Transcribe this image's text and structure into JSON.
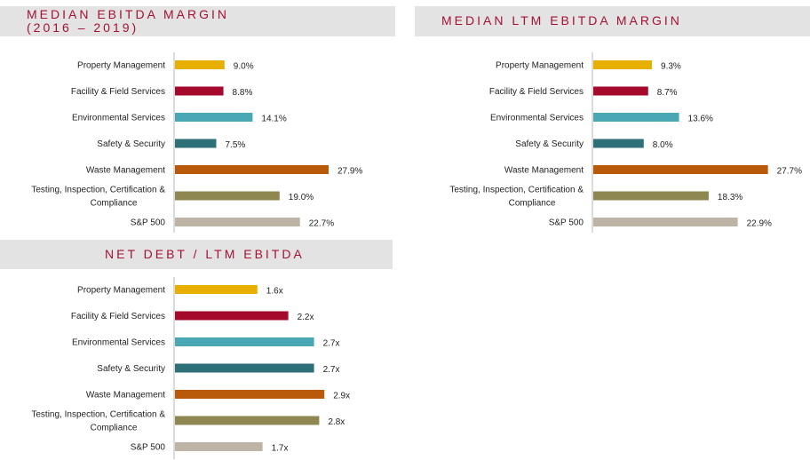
{
  "chart_data": [
    {
      "type": "bar",
      "orientation": "horizontal",
      "title": [
        "MEDIAN EBITDA MARGIN",
        "(2016 – 2019)"
      ],
      "categories": [
        "Property Management",
        "Facility & Field Services",
        "Environmental Services",
        "Safety & Security",
        "Waste Management",
        "Testing, Inspection, Certification & Compliance",
        "S&P 500"
      ],
      "values": [
        9.0,
        8.8,
        14.1,
        7.5,
        27.9,
        19.0,
        22.7
      ],
      "labels": [
        "9.0%",
        "8.8%",
        "14.1%",
        "7.5%",
        "27.9%",
        "19.0%",
        "22.7%"
      ],
      "xlim": [
        0,
        30
      ],
      "grid": false,
      "legend": "none"
    },
    {
      "type": "bar",
      "orientation": "horizontal",
      "title": [
        "MEDIAN LTM EBITDA MARGIN"
      ],
      "categories": [
        "Property Management",
        "Facility & Field Services",
        "Environmental Services",
        "Safety & Security",
        "Waste Management",
        "Testing, Inspection, Certification & Compliance",
        "S&P 500"
      ],
      "values": [
        9.3,
        8.7,
        13.6,
        8.0,
        27.7,
        18.3,
        22.9
      ],
      "labels": [
        "9.3%",
        "8.7%",
        "13.6%",
        "8.0%",
        "27.7%",
        "18.3%",
        "22.9%"
      ],
      "xlim": [
        0,
        30
      ],
      "grid": false,
      "legend": "none"
    },
    {
      "type": "bar",
      "orientation": "horizontal",
      "title": [
        "NET DEBT / LTM EBITDA"
      ],
      "categories": [
        "Property Management",
        "Facility & Field Services",
        "Environmental Services",
        "Safety & Security",
        "Waste Management",
        "Testing, Inspection, Certification & Compliance",
        "S&P 500"
      ],
      "values": [
        1.6,
        2.2,
        2.7,
        2.7,
        2.9,
        2.8,
        1.7
      ],
      "labels": [
        "1.6x",
        "2.2x",
        "2.7x",
        "2.7x",
        "2.9x",
        "2.8x",
        "1.7x"
      ],
      "xlim": [
        0,
        3.5
      ],
      "grid": false,
      "legend": "none"
    }
  ],
  "colors": {
    "bars": [
      "#e7b000",
      "#a50a2c",
      "#4aa7b4",
      "#2e7078",
      "#b85a0a",
      "#8f8752",
      "#bdb4a6"
    ],
    "title": "#a31233",
    "header_bg": "#e3e3e3",
    "axis": "#b7b7b7",
    "text": "#222222"
  }
}
